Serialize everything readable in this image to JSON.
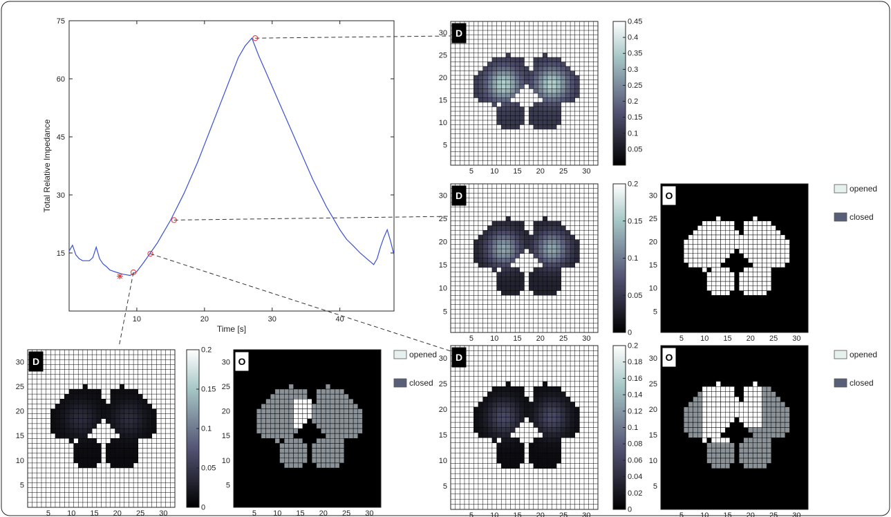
{
  "chart_data": [
    {
      "id": "main",
      "type": "line",
      "xlabel": "Time [s]",
      "ylabel": "Total Relative Impedance",
      "xlim": [
        0,
        48
      ],
      "ylim": [
        0,
        75
      ],
      "xticks": [
        10,
        20,
        30,
        40
      ],
      "yticks": [
        15,
        30,
        45,
        60,
        75
      ],
      "x": [
        0,
        0.5,
        1,
        1.5,
        2,
        3,
        3.5,
        4,
        4.5,
        5,
        5.5,
        6,
        6.5,
        7,
        8,
        9,
        10,
        11,
        12,
        13,
        14,
        15,
        16,
        17,
        18,
        19,
        20,
        21,
        22,
        23,
        24,
        25,
        26,
        27,
        28,
        29,
        30,
        31,
        32,
        33,
        34,
        35,
        36,
        37,
        38,
        39,
        40,
        41,
        42,
        43,
        44,
        45,
        45.5,
        46,
        46.5,
        47,
        47.5,
        48
      ],
      "y": [
        15.5,
        17,
        14.5,
        13.5,
        13,
        13,
        13.8,
        16.5,
        13.5,
        12.2,
        11.5,
        10.6,
        10.3,
        10,
        9.5,
        9.2,
        10.2,
        12.5,
        15,
        17.5,
        20.5,
        23.5,
        27,
        30.5,
        34.5,
        38.5,
        43,
        47.5,
        52,
        56.5,
        61,
        65.5,
        68.5,
        70.5,
        66,
        62,
        58,
        54,
        50,
        46,
        42,
        38,
        34,
        30.5,
        27,
        24,
        21,
        18.5,
        16.8,
        15,
        13.5,
        12,
        13.5,
        16.5,
        19,
        21,
        18,
        14.5
      ],
      "markers": [
        {
          "x": 7.5,
          "y": 9,
          "shape": "star"
        },
        {
          "x": 9.5,
          "y": 10,
          "shape": "circle"
        },
        {
          "x": 12,
          "y": 14.8,
          "shape": "circle"
        },
        {
          "x": 15.5,
          "y": 23.5,
          "shape": "circle"
        },
        {
          "x": 27.5,
          "y": 70.5,
          "shape": "circle"
        }
      ],
      "line_color": "#3a4fd6",
      "marker_color": "#e8413f"
    },
    {
      "id": "D1",
      "type": "heatmap",
      "badge": "D",
      "xticks": [
        5,
        10,
        15,
        20,
        25,
        30
      ],
      "yticks": [
        5,
        10,
        15,
        20,
        25,
        30
      ],
      "colorbar_ticks": [
        "0.05",
        "0.1",
        "0.15",
        "0.2",
        "0.25",
        "0.3",
        "0.35",
        "0.4",
        "0.45"
      ],
      "colorbar_range": [
        0,
        0.45
      ]
    },
    {
      "id": "D2",
      "type": "heatmap",
      "badge": "D",
      "xticks": [
        5,
        10,
        15,
        20,
        25,
        30
      ],
      "yticks": [
        5,
        10,
        15,
        20,
        25,
        30
      ],
      "colorbar_ticks": [
        "0",
        "0.05",
        "0.1",
        "0.15",
        "0.2"
      ],
      "colorbar_range": [
        0,
        0.2
      ]
    },
    {
      "id": "O2",
      "type": "heatmap",
      "badge": "O",
      "xticks": [
        5,
        10,
        15,
        20,
        25,
        30
      ],
      "yticks": [
        5,
        10,
        15,
        20,
        25,
        30
      ],
      "legend": [
        "opened",
        "closed"
      ]
    },
    {
      "id": "D3",
      "type": "heatmap",
      "badge": "D",
      "xticks": [
        5,
        10,
        15,
        20,
        25,
        30
      ],
      "yticks": [
        5,
        10,
        15,
        20,
        25,
        30
      ],
      "colorbar_ticks": [
        "0",
        "0.05",
        "0.1",
        "0.15",
        "0.2"
      ],
      "colorbar_range": [
        0,
        0.2
      ]
    },
    {
      "id": "O3",
      "type": "heatmap",
      "badge": "O",
      "xticks": [
        5,
        10,
        15,
        20,
        25,
        30
      ],
      "yticks": [
        5,
        10,
        15,
        20,
        25,
        30
      ],
      "legend": [
        "opened",
        "closed"
      ]
    },
    {
      "id": "D4",
      "type": "heatmap",
      "badge": "D",
      "xticks": [
        5,
        10,
        15,
        20,
        25,
        30
      ],
      "yticks": [
        5,
        10,
        15,
        20,
        25,
        30
      ],
      "colorbar_ticks": [
        "0",
        "0.02",
        "0.04",
        "0.06",
        "0.08",
        "0.1",
        "0.12",
        "0.14",
        "0.16",
        "0.18",
        "0.2"
      ],
      "colorbar_range": [
        0,
        0.2
      ]
    },
    {
      "id": "O4",
      "type": "heatmap",
      "badge": "O",
      "xticks": [
        5,
        10,
        15,
        20,
        25,
        30
      ],
      "yticks": [
        5,
        10,
        15,
        20,
        25,
        30
      ],
      "legend": [
        "opened",
        "closed"
      ]
    }
  ],
  "colors": {
    "grid_line": "#000000",
    "cell_white": "#ffffff",
    "opened": "#e6f0ee",
    "closed_legend": "#5a5f78",
    "closed_cell": "#8a9298",
    "connector": "#333333"
  }
}
